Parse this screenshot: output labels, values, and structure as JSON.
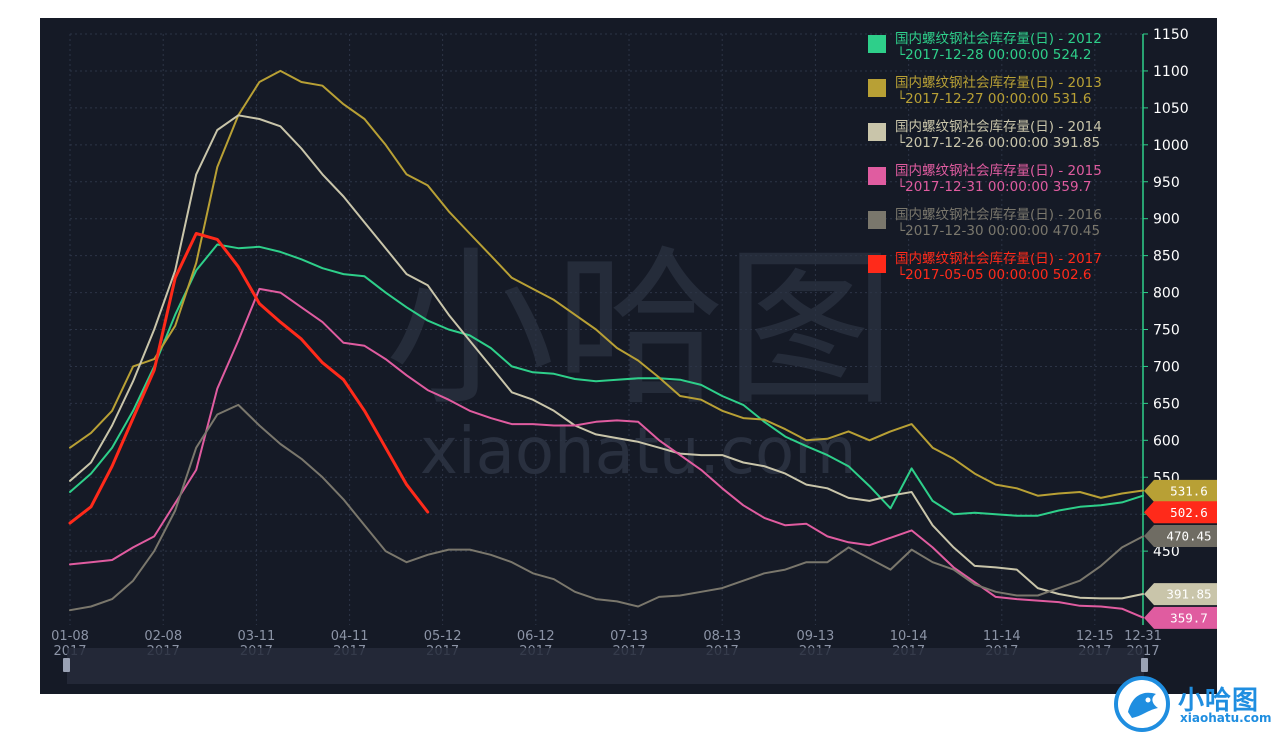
{
  "chart_data": {
    "type": "line",
    "title": "",
    "xlabel": "",
    "ylabel": "",
    "x_ticks": [
      {
        "label": "01-08",
        "year": "2017",
        "week": 1
      },
      {
        "label": "02-08",
        "year": "2017",
        "week": 5.43
      },
      {
        "label": "03-11",
        "year": "2017",
        "week": 9.86
      },
      {
        "label": "04-11",
        "year": "2017",
        "week": 14.29
      },
      {
        "label": "05-12",
        "year": "2017",
        "week": 18.71
      },
      {
        "label": "06-12",
        "year": "2017",
        "week": 23.14
      },
      {
        "label": "07-13",
        "year": "2017",
        "week": 27.57
      },
      {
        "label": "08-13",
        "year": "2017",
        "week": 32.0
      },
      {
        "label": "09-13",
        "year": "2017",
        "week": 36.43
      },
      {
        "label": "10-14",
        "year": "2017",
        "week": 40.86
      },
      {
        "label": "11-14",
        "year": "2017",
        "week": 45.29
      },
      {
        "label": "12-15",
        "year": "2017",
        "week": 49.71
      },
      {
        "label": "12-31",
        "year": "2017",
        "week": 52
      }
    ],
    "xlim": [
      1,
      52
    ],
    "ylim": [
      350,
      1150
    ],
    "y_ticks": [
      450,
      500,
      550,
      600,
      650,
      700,
      750,
      800,
      850,
      900,
      950,
      1000,
      1050,
      1100,
      1150
    ],
    "grid": true,
    "legend_position": "top-right",
    "series": [
      {
        "name": "国内螺纹钢社会库存量(日) - 2012",
        "latest": "└2017-12-28 00:00:00 524.2",
        "color": "#2ecf8a",
        "width": 2,
        "x": [
          1,
          2,
          3,
          4,
          5,
          6,
          7,
          8,
          9,
          10,
          11,
          12,
          13,
          14,
          15,
          16,
          17,
          18,
          19,
          20,
          21,
          22,
          23,
          24,
          25,
          26,
          27,
          28,
          29,
          30,
          31,
          32,
          33,
          34,
          35,
          36,
          37,
          38,
          39,
          40,
          41,
          42,
          43,
          44,
          45,
          46,
          47,
          48,
          49,
          50,
          51,
          52
        ],
        "values": [
          530,
          555,
          590,
          640,
          700,
          770,
          830,
          865,
          860,
          862,
          855,
          845,
          833,
          825,
          822,
          800,
          780,
          762,
          750,
          742,
          725,
          700,
          692,
          690,
          683,
          680,
          682,
          684,
          684,
          682,
          675,
          660,
          648,
          625,
          605,
          592,
          580,
          565,
          538,
          508,
          562,
          518,
          500,
          502,
          500,
          498,
          498,
          505,
          510,
          512,
          516,
          525
        ]
      },
      {
        "name": "国内螺纹钢社会库存量(日) - 2013",
        "latest": "└2017-12-27 00:00:00 531.6",
        "color": "#b8a035",
        "width": 2,
        "x": [
          1,
          2,
          3,
          4,
          5,
          6,
          7,
          8,
          9,
          10,
          11,
          12,
          13,
          14,
          15,
          16,
          17,
          18,
          19,
          20,
          21,
          22,
          23,
          24,
          25,
          26,
          27,
          28,
          29,
          30,
          31,
          32,
          33,
          34,
          35,
          36,
          37,
          38,
          39,
          40,
          41,
          42,
          43,
          44,
          45,
          46,
          47,
          48,
          49,
          50,
          51,
          52
        ],
        "values": [
          590,
          610,
          640,
          700,
          710,
          755,
          840,
          970,
          1040,
          1085,
          1100,
          1085,
          1080,
          1055,
          1035,
          1000,
          960,
          945,
          910,
          880,
          850,
          820,
          805,
          790,
          770,
          750,
          725,
          708,
          685,
          660,
          655,
          640,
          630,
          628,
          615,
          600,
          602,
          612,
          600,
          612,
          622,
          590,
          575,
          555,
          540,
          535,
          525,
          528,
          530,
          522,
          528,
          532
        ]
      },
      {
        "name": "国内螺纹钢社会库存量(日) - 2014",
        "latest": "└2017-12-26 00:00:00 391.85",
        "color": "#c9c5aa",
        "width": 2,
        "x": [
          1,
          2,
          3,
          4,
          5,
          6,
          7,
          8,
          9,
          10,
          11,
          12,
          13,
          14,
          15,
          16,
          17,
          18,
          19,
          20,
          21,
          22,
          23,
          24,
          25,
          26,
          27,
          28,
          29,
          30,
          31,
          32,
          33,
          34,
          35,
          36,
          37,
          38,
          39,
          40,
          41,
          42,
          43,
          44,
          45,
          46,
          47,
          48,
          49,
          50,
          51,
          52
        ],
        "values": [
          545,
          570,
          620,
          680,
          750,
          830,
          960,
          1020,
          1040,
          1035,
          1025,
          995,
          960,
          930,
          895,
          860,
          825,
          810,
          770,
          735,
          700,
          665,
          655,
          640,
          620,
          608,
          603,
          598,
          590,
          582,
          580,
          580,
          570,
          565,
          555,
          540,
          535,
          522,
          518,
          525,
          530,
          485,
          455,
          430,
          428,
          425,
          400,
          392,
          387,
          386,
          386,
          392
        ]
      },
      {
        "name": "国内螺纹钢社会库存量(日) - 2015",
        "latest": "└2017-12-31 00:00:00 359.7",
        "color": "#e05ca0",
        "width": 2,
        "x": [
          1,
          2,
          3,
          4,
          5,
          6,
          7,
          8,
          9,
          10,
          11,
          12,
          13,
          14,
          15,
          16,
          17,
          18,
          19,
          20,
          21,
          22,
          23,
          24,
          25,
          26,
          27,
          28,
          29,
          30,
          31,
          32,
          33,
          34,
          35,
          36,
          37,
          38,
          39,
          40,
          41,
          42,
          43,
          44,
          45,
          46,
          47,
          48,
          49,
          50,
          51,
          52
        ],
        "values": [
          432,
          435,
          438,
          455,
          470,
          515,
          560,
          670,
          735,
          805,
          800,
          780,
          760,
          732,
          728,
          710,
          688,
          668,
          655,
          640,
          630,
          622,
          622,
          620,
          620,
          625,
          627,
          625,
          600,
          580,
          560,
          535,
          512,
          495,
          485,
          487,
          470,
          462,
          458,
          468,
          478,
          455,
          428,
          408,
          388,
          385,
          383,
          381,
          376,
          375,
          372,
          360
        ]
      },
      {
        "name": "国内螺纹钢社会库存量(日) - 2016",
        "latest": "└2017-12-30 00:00:00 470.45",
        "color": "#7a776c",
        "width": 2,
        "x": [
          1,
          2,
          3,
          4,
          5,
          6,
          7,
          8,
          9,
          10,
          11,
          12,
          13,
          14,
          15,
          16,
          17,
          18,
          19,
          20,
          21,
          22,
          23,
          24,
          25,
          26,
          27,
          28,
          29,
          30,
          31,
          32,
          33,
          34,
          35,
          36,
          37,
          38,
          39,
          40,
          41,
          42,
          43,
          44,
          45,
          46,
          47,
          48,
          49,
          50,
          51,
          52
        ],
        "values": [
          370,
          375,
          385,
          410,
          450,
          505,
          590,
          635,
          648,
          620,
          595,
          575,
          550,
          520,
          485,
          450,
          435,
          445,
          452,
          452,
          445,
          435,
          420,
          412,
          395,
          385,
          382,
          375,
          388,
          390,
          395,
          400,
          410,
          420,
          425,
          435,
          435,
          455,
          440,
          425,
          452,
          435,
          425,
          405,
          395,
          390,
          390,
          400,
          410,
          430,
          455,
          470
        ]
      },
      {
        "name": "国内螺纹钢社会库存量(日) - 2017",
        "latest": "└2017-05-05 00:00:00 502.6",
        "color": "#ff2a1a",
        "width": 3,
        "x": [
          1,
          2,
          3,
          4,
          5,
          6,
          7,
          8,
          9,
          10,
          11,
          12,
          13,
          14,
          15,
          16,
          17,
          18
        ],
        "values": [
          488,
          510,
          565,
          630,
          695,
          820,
          880,
          872,
          835,
          785,
          760,
          737,
          705,
          682,
          640,
          590,
          540,
          503
        ]
      }
    ],
    "end_flags": [
      {
        "text": "531.6",
        "value": 531.6,
        "color": "#b8a035"
      },
      {
        "text": "502.6",
        "value": 502.6,
        "color": "#ff2a1a"
      },
      {
        "text": "470.45",
        "value": 470.45,
        "color": "#6f6c63"
      },
      {
        "text": "391.85",
        "value": 391.85,
        "color": "#c9c5aa"
      },
      {
        "text": "359.7",
        "value": 359.7,
        "color": "#e05ca0"
      }
    ],
    "watermark": {
      "cjk": "小哈图",
      "latin": "xiaohatu.com"
    }
  },
  "brand": {
    "name": "小哈图",
    "url": "xiaohatu.com"
  },
  "colors": {
    "background": "#151a26",
    "axis": "#2ecf8a",
    "grid": "#2c3446",
    "navigator": "#262c3b"
  }
}
